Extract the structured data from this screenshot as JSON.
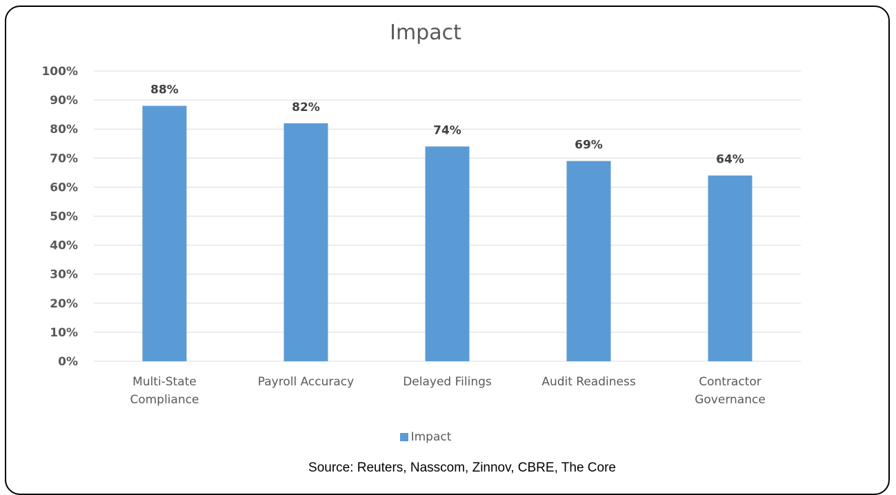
{
  "chart_data": {
    "type": "bar",
    "title": "Impact",
    "categories": [
      [
        "Multi-State",
        "Compliance"
      ],
      [
        "Payroll Accuracy"
      ],
      [
        "Delayed Filings"
      ],
      [
        "Audit Readiness"
      ],
      [
        "Contractor",
        "Governance"
      ]
    ],
    "series": [
      {
        "name": "Impact",
        "values": [
          88,
          82,
          74,
          69,
          64
        ],
        "color": "#5b9bd5"
      }
    ],
    "data_labels": [
      "88%",
      "82%",
      "74%",
      "69%",
      "64%"
    ],
    "y_ticks": [
      "0%",
      "10%",
      "20%",
      "30%",
      "40%",
      "50%",
      "60%",
      "70%",
      "80%",
      "90%",
      "100%"
    ],
    "ylim": [
      0,
      100
    ],
    "grid": true,
    "legend_position": "bottom",
    "xlabel": "",
    "ylabel": ""
  },
  "legend": {
    "label": "Impact"
  },
  "source": "Source: Reuters, Nasscom, Zinnov, CBRE, The Core"
}
